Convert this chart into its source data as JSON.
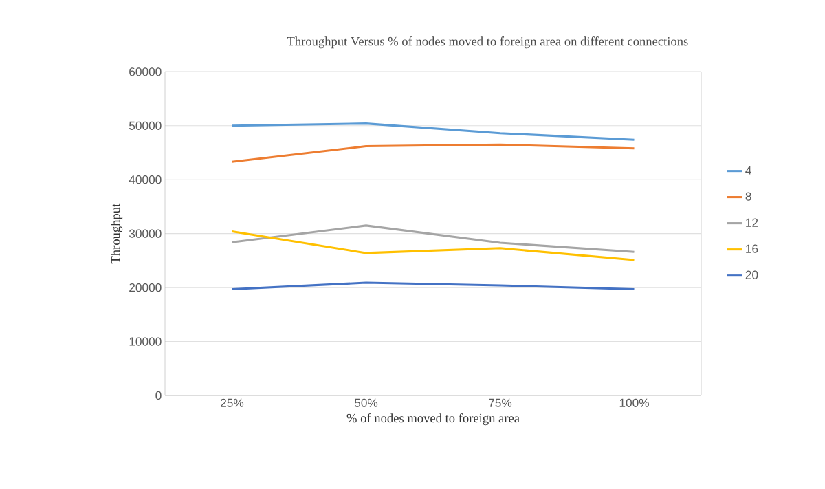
{
  "chart_data": {
    "type": "line",
    "title": "Throughput Versus % of nodes moved to foreign area on different connections",
    "xlabel": "% of nodes moved to foreign area",
    "ylabel": "Throughput",
    "categories": [
      "25%",
      "50%",
      "75%",
      "100%"
    ],
    "series": [
      {
        "name": "4",
        "color": "#5b9bd5",
        "values": [
          50000,
          50400,
          48600,
          47400
        ]
      },
      {
        "name": "8",
        "color": "#ed7d31",
        "values": [
          43300,
          46200,
          46500,
          45800
        ]
      },
      {
        "name": "12",
        "color": "#a5a5a5",
        "values": [
          28400,
          31500,
          28300,
          26600
        ]
      },
      {
        "name": "16",
        "color": "#ffc000",
        "values": [
          30400,
          26400,
          27300,
          25100
        ]
      },
      {
        "name": "20",
        "color": "#4472c4",
        "values": [
          19700,
          20900,
          20400,
          19700
        ]
      }
    ],
    "ylim": [
      0,
      60000
    ],
    "yticks": [
      0,
      10000,
      20000,
      30000,
      40000,
      50000,
      60000
    ],
    "grid": "y",
    "legend": "right",
    "marker": "none",
    "line_style": "solid"
  }
}
